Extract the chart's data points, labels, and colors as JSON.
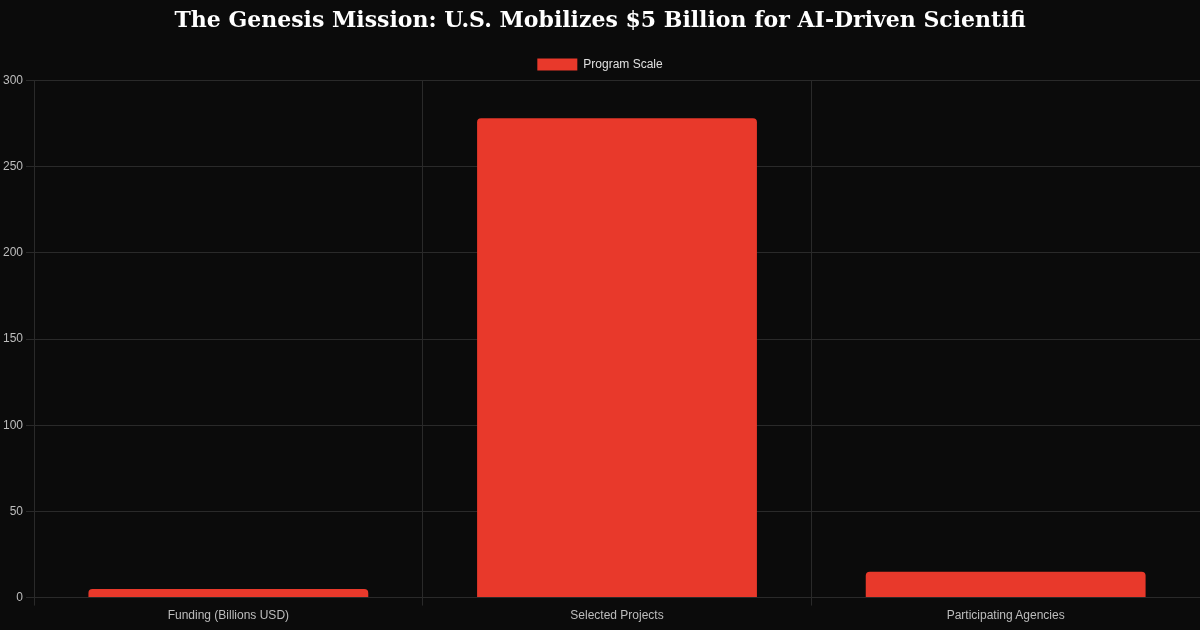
{
  "chart_data": {
    "type": "bar",
    "title": "The Genesis Mission: U.S. Mobilizes $5 Billion for AI-Driven Scientifi",
    "categories": [
      "Funding (Billions USD)",
      "Selected Projects",
      "Participating Agencies"
    ],
    "series": [
      {
        "name": "Program Scale",
        "color": "#e8392b",
        "values": [
          5,
          278,
          15
        ]
      }
    ],
    "ylim": [
      0,
      300
    ],
    "yticks": [
      0,
      50,
      100,
      150,
      200,
      250,
      300
    ],
    "grid": true,
    "legend": "top"
  }
}
